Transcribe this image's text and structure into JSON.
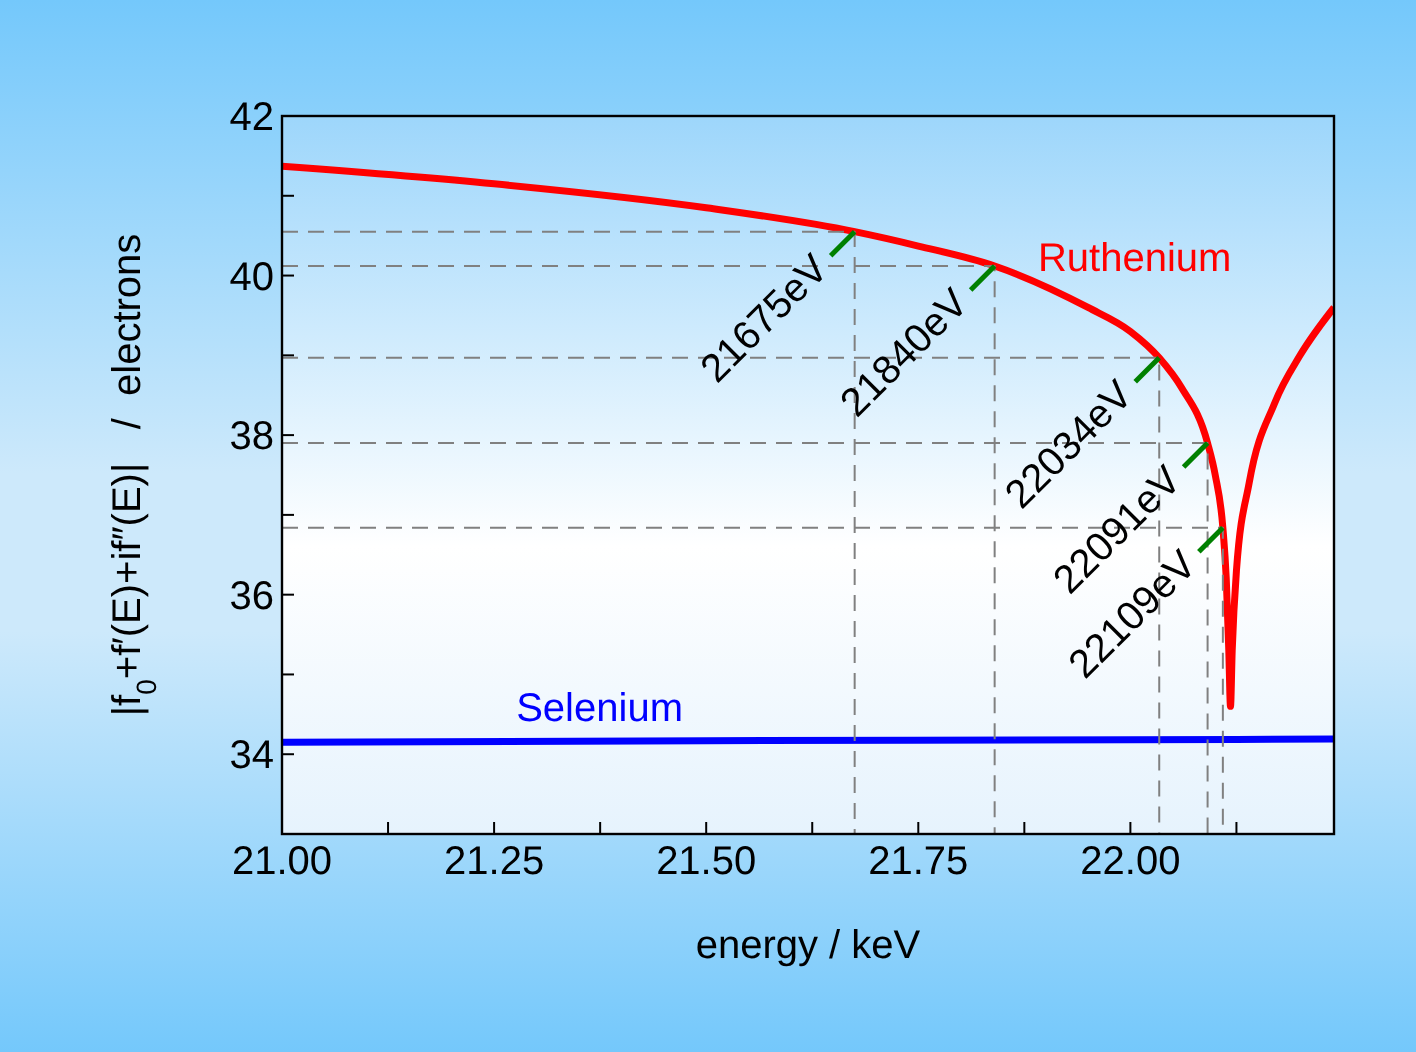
{
  "chart_data": {
    "type": "line",
    "xlabel": "energy / keV",
    "ylabel": "|f$_{0}$+f′(E)+if″(E)|   /  electrons",
    "xlim": [
      21.0,
      22.24
    ],
    "xticks": [
      {
        "value": 21.0,
        "label": "21.00"
      },
      {
        "value": 21.125,
        "label": null
      },
      {
        "value": 21.25,
        "label": "21.25"
      },
      {
        "value": 21.375,
        "label": null
      },
      {
        "value": 21.5,
        "label": "21.50"
      },
      {
        "value": 21.625,
        "label": null
      },
      {
        "value": 21.75,
        "label": "21.75"
      },
      {
        "value": 21.875,
        "label": null
      },
      {
        "value": 22.0,
        "label": "22.00"
      },
      {
        "value": 22.125,
        "label": null
      }
    ],
    "ylim": [
      33,
      42
    ],
    "yticks": [
      {
        "value": 33,
        "label": null
      },
      34,
      {
        "value": 35,
        "label": null
      },
      36,
      {
        "value": 37,
        "label": null
      },
      38,
      {
        "value": 39,
        "label": null
      },
      40,
      {
        "value": 41,
        "label": null
      },
      42
    ],
    "marker": "none",
    "line_style": "solid",
    "series": [
      {
        "name": "Ruthenium",
        "color": "#ff0000",
        "x": [
          21.0,
          21.25,
          21.5,
          21.675,
          21.75,
          21.84,
          21.95,
          22.0,
          22.034,
          22.06,
          22.091,
          22.1,
          22.109,
          22.113,
          22.116,
          22.118,
          22.12,
          22.125,
          22.14,
          22.17,
          22.2,
          22.24
        ],
        "values": [
          41.37,
          41.15,
          40.85,
          40.55,
          40.37,
          40.12,
          39.6,
          39.3,
          38.97,
          38.6,
          37.9,
          37.5,
          36.84,
          36.2,
          35.3,
          34.6,
          35.3,
          36.3,
          37.4,
          38.4,
          39.0,
          39.6
        ]
      },
      {
        "name": "Selenium",
        "color": "#0000ff",
        "x": [
          21.0,
          21.5,
          22.0,
          22.24
        ],
        "values": [
          34.15,
          34.17,
          34.18,
          34.19
        ]
      },
      {
        "color": "#808080",
        "line_style": "dashed",
        "x": [
          21.0,
          21.675,
          21.675
        ],
        "values": [
          40.55,
          40.55,
          33
        ]
      },
      {
        "color": "#808080",
        "line_style": "dashed",
        "x": [
          21.0,
          21.84,
          21.84
        ],
        "values": [
          40.12,
          40.12,
          33
        ]
      },
      {
        "color": "#808080",
        "line_style": "dashed",
        "x": [
          21.0,
          22.034,
          22.034
        ],
        "values": [
          38.97,
          38.97,
          33
        ]
      },
      {
        "color": "#808080",
        "line_style": "dashed",
        "x": [
          21.0,
          22.091,
          22.091
        ],
        "values": [
          37.9,
          37.9,
          33
        ]
      },
      {
        "color": "#808080",
        "line_style": "dashed",
        "x": [
          21.0,
          22.109,
          22.109
        ],
        "values": [
          36.84,
          36.84,
          33
        ]
      }
    ],
    "annotations": [
      {
        "text": "21675eV",
        "x": 21.675,
        "y": 40.55
      },
      {
        "text": "21840eV",
        "x": 21.84,
        "y": 40.12
      },
      {
        "text": "22034eV",
        "x": 22.034,
        "y": 38.97
      },
      {
        "text": "22091eV",
        "x": 22.091,
        "y": 37.9
      },
      {
        "text": "22109eV",
        "x": 22.109,
        "y": 36.84
      }
    ]
  }
}
